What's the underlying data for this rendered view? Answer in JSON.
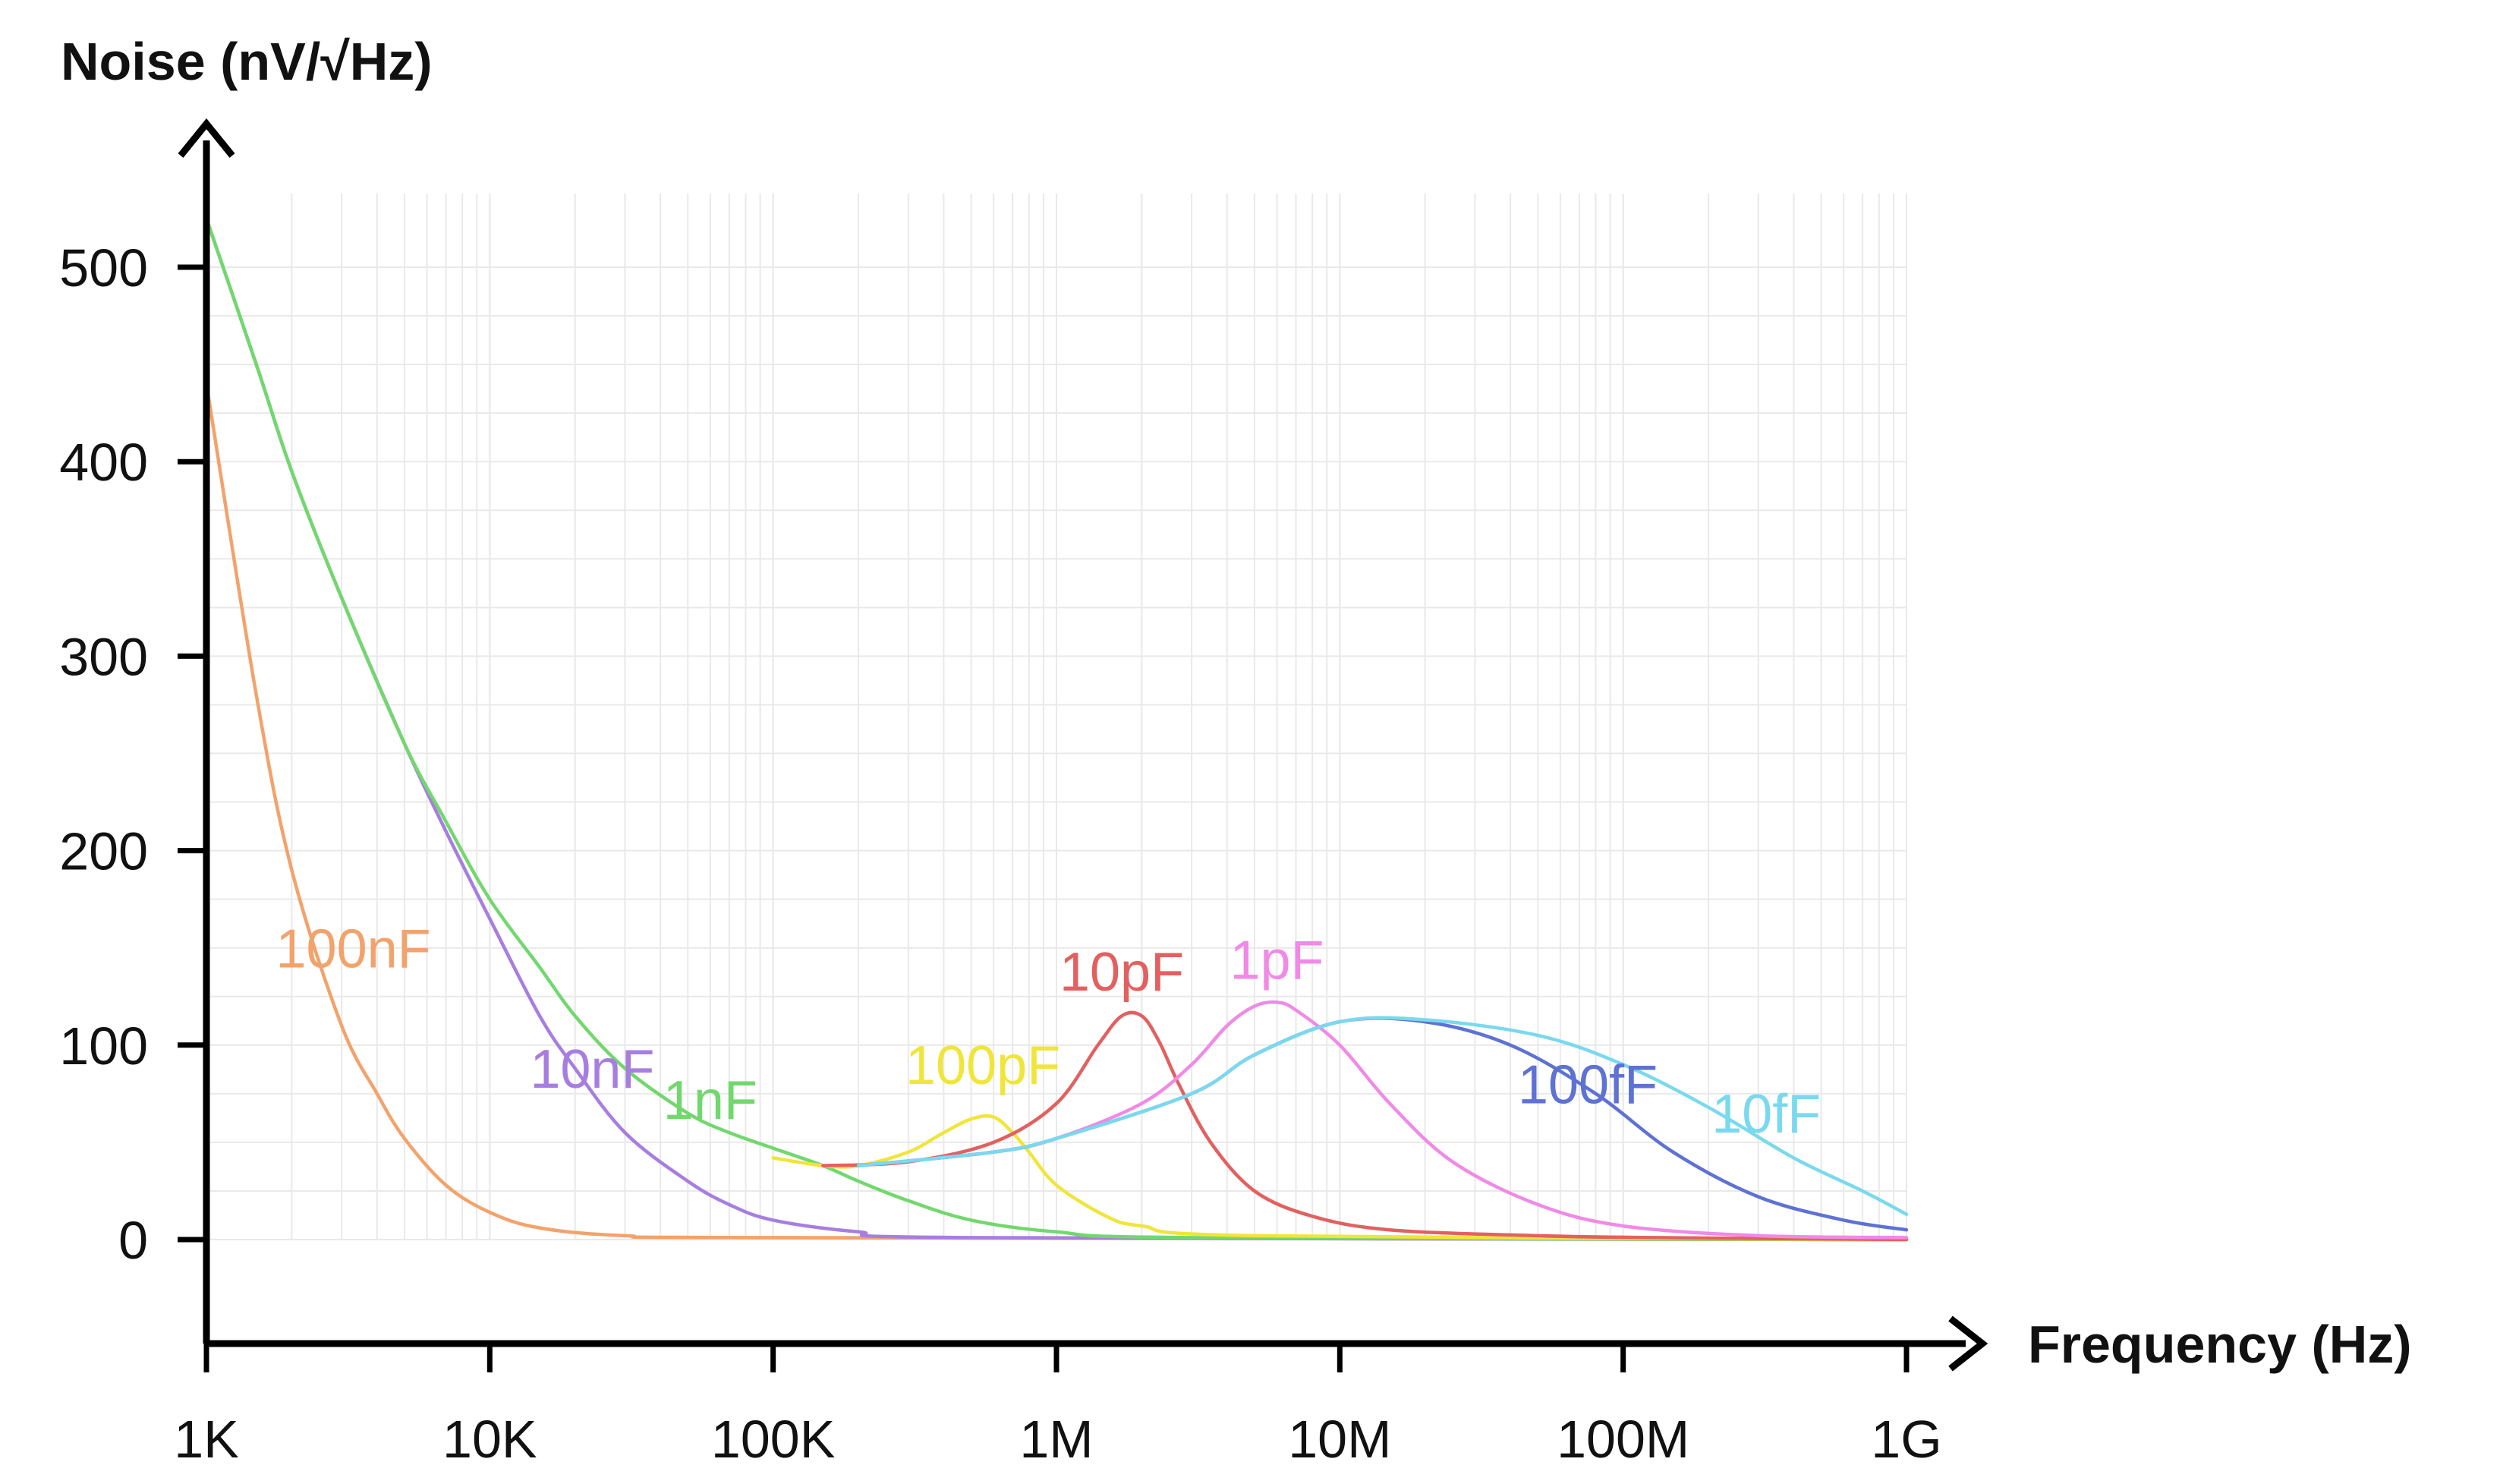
{
  "chart_data": {
    "type": "line",
    "title": "",
    "ylabel": "Noise (nV/√Hz)",
    "xlabel": "Frequency (Hz)",
    "x_scale": "log",
    "xlim": [
      1000,
      1000000000
    ],
    "ylim": [
      -50,
      530
    ],
    "grid": true,
    "x_ticks": [
      {
        "value": 1000,
        "label": "1K"
      },
      {
        "value": 10000,
        "label": "10K"
      },
      {
        "value": 100000,
        "label": "100K"
      },
      {
        "value": 1000000,
        "label": "1M"
      },
      {
        "value": 10000000,
        "label": "10M"
      },
      {
        "value": 100000000,
        "label": "100M"
      },
      {
        "value": 1000000000,
        "label": "1G"
      }
    ],
    "y_ticks": [
      {
        "value": 0,
        "label": "0"
      },
      {
        "value": 100,
        "label": "100"
      },
      {
        "value": 200,
        "label": "200"
      },
      {
        "value": 300,
        "label": "300"
      },
      {
        "value": 400,
        "label": "400"
      },
      {
        "value": 500,
        "label": "500"
      }
    ],
    "series": [
      {
        "name": "100nF",
        "color": "#f2a36b",
        "label_at": [
          3300,
          140
        ],
        "points": [
          [
            1000,
            440
          ],
          [
            1500,
            280
          ],
          [
            2000,
            190
          ],
          [
            3000,
            110
          ],
          [
            4000,
            75
          ],
          [
            5000,
            52
          ],
          [
            7000,
            28
          ],
          [
            10000,
            14
          ],
          [
            15000,
            6
          ],
          [
            30000,
            2
          ],
          [
            100000,
            1
          ],
          [
            1000000000,
            0
          ]
        ]
      },
      {
        "name": "10nF",
        "color": "#a77ee0",
        "label_at": [
          23000,
          78
        ],
        "points": [
          [
            1000,
            525
          ],
          [
            1500,
            450
          ],
          [
            2000,
            395
          ],
          [
            3000,
            330
          ],
          [
            5000,
            255
          ],
          [
            7000,
            210
          ],
          [
            10000,
            165
          ],
          [
            15000,
            115
          ],
          [
            20000,
            88
          ],
          [
            30000,
            55
          ],
          [
            50000,
            30
          ],
          [
            70000,
            18
          ],
          [
            100000,
            10
          ],
          [
            200000,
            4
          ],
          [
            500000,
            1
          ],
          [
            1000000000,
            0
          ]
        ]
      },
      {
        "name": "1nF",
        "color": "#72d86e",
        "label_at": [
          60000,
          62
        ],
        "points": [
          [
            1000,
            525
          ],
          [
            1500,
            450
          ],
          [
            2000,
            395
          ],
          [
            3000,
            330
          ],
          [
            5000,
            255
          ],
          [
            7000,
            215
          ],
          [
            10000,
            175
          ],
          [
            15000,
            140
          ],
          [
            20000,
            115
          ],
          [
            30000,
            88
          ],
          [
            50000,
            65
          ],
          [
            70000,
            55
          ],
          [
            100000,
            47
          ],
          [
            150000,
            38
          ],
          [
            200000,
            30
          ],
          [
            300000,
            20
          ],
          [
            500000,
            10
          ],
          [
            1000000,
            4
          ],
          [
            3000000,
            1
          ],
          [
            1000000000,
            0
          ]
        ]
      },
      {
        "name": "100pF",
        "color": "#f0e53a",
        "label_at": [
          550000,
          80
        ],
        "points": [
          [
            100000,
            42
          ],
          [
            150000,
            38
          ],
          [
            200000,
            38
          ],
          [
            300000,
            45
          ],
          [
            400000,
            55
          ],
          [
            500000,
            62
          ],
          [
            600000,
            63
          ],
          [
            700000,
            55
          ],
          [
            800000,
            45
          ],
          [
            1000000,
            28
          ],
          [
            1500000,
            12
          ],
          [
            2000000,
            7
          ],
          [
            5000000,
            2
          ],
          [
            1000000000,
            0
          ]
        ]
      },
      {
        "name": "10pF",
        "color": "#e36060",
        "label_at": [
          1700000,
          128
        ],
        "points": [
          [
            150000,
            38
          ],
          [
            300000,
            40
          ],
          [
            600000,
            50
          ],
          [
            1000000,
            70
          ],
          [
            1400000,
            100
          ],
          [
            1700000,
            115
          ],
          [
            2000000,
            115
          ],
          [
            2300000,
            102
          ],
          [
            2700000,
            80
          ],
          [
            3500000,
            50
          ],
          [
            5000000,
            25
          ],
          [
            8000000,
            12
          ],
          [
            15000000,
            5
          ],
          [
            50000000,
            2
          ],
          [
            130000000,
            1
          ],
          [
            1000000000,
            0
          ]
        ]
      },
      {
        "name": "1pF",
        "color": "#f08ae6",
        "label_at": [
          6000000,
          134
        ],
        "points": [
          [
            200000,
            38
          ],
          [
            600000,
            45
          ],
          [
            1000000,
            52
          ],
          [
            2000000,
            70
          ],
          [
            3000000,
            90
          ],
          [
            4000000,
            110
          ],
          [
            5000000,
            120
          ],
          [
            6000000,
            122
          ],
          [
            7000000,
            118
          ],
          [
            10000000,
            100
          ],
          [
            15000000,
            70
          ],
          [
            25000000,
            40
          ],
          [
            50000000,
            18
          ],
          [
            100000000,
            7
          ],
          [
            300000000,
            2
          ],
          [
            1000000000,
            1
          ]
        ]
      },
      {
        "name": "100fF",
        "color": "#5e72d4",
        "label_at": [
          75000000,
          70
        ],
        "points": [
          [
            200000,
            38
          ],
          [
            600000,
            45
          ],
          [
            1000000,
            52
          ],
          [
            3000000,
            75
          ],
          [
            5000000,
            95
          ],
          [
            10000000,
            112
          ],
          [
            20000000,
            112
          ],
          [
            40000000,
            100
          ],
          [
            80000000,
            75
          ],
          [
            150000000,
            45
          ],
          [
            300000000,
            22
          ],
          [
            600000000,
            10
          ],
          [
            1000000000,
            5
          ]
        ]
      },
      {
        "name": "10fF",
        "color": "#7ad9ee",
        "label_at": [
          320000000,
          55
        ],
        "points": [
          [
            200000,
            38
          ],
          [
            600000,
            45
          ],
          [
            1000000,
            52
          ],
          [
            3000000,
            75
          ],
          [
            5000000,
            95
          ],
          [
            10000000,
            112
          ],
          [
            20000000,
            113
          ],
          [
            50000000,
            105
          ],
          [
            100000000,
            90
          ],
          [
            200000000,
            68
          ],
          [
            400000000,
            42
          ],
          [
            700000000,
            25
          ],
          [
            1000000000,
            13
          ]
        ]
      }
    ]
  }
}
